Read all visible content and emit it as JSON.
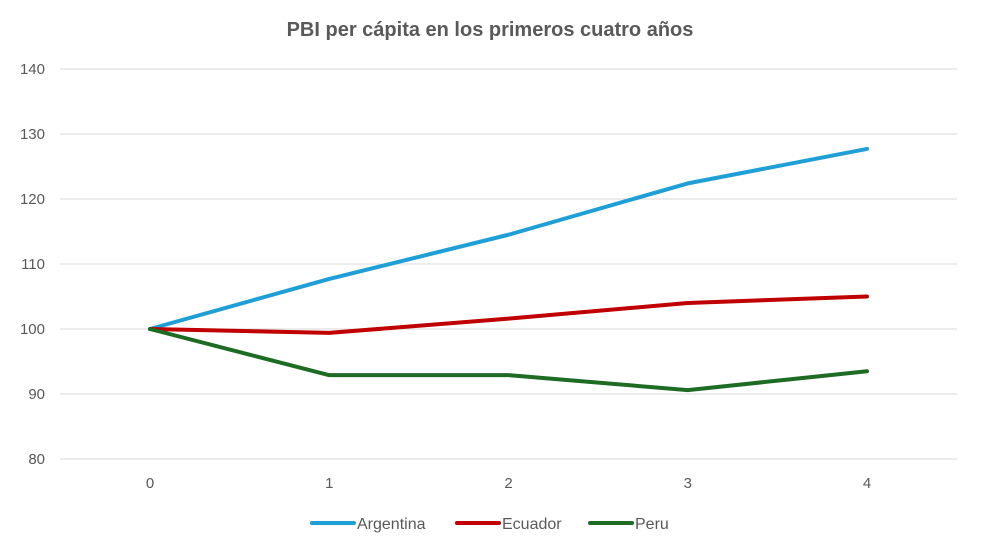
{
  "chart_data": {
    "type": "line",
    "title": "PBI per cápita en los primeros cuatro años",
    "xlabel": "",
    "ylabel": "",
    "x": [
      0,
      1,
      2,
      3,
      4
    ],
    "x_tick_labels": [
      "0",
      "1",
      "2",
      "3",
      "4"
    ],
    "ylim": [
      80,
      140
    ],
    "y_ticks": [
      80,
      90,
      100,
      110,
      120,
      130,
      140
    ],
    "y_tick_labels": [
      "80",
      "90",
      "100",
      "110",
      "120",
      "130",
      "140"
    ],
    "grid": true,
    "legend_position": "bottom",
    "series": [
      {
        "name": "Argentina",
        "color": "#1f9fd6",
        "values": [
          100,
          107.7,
          114.5,
          122.4,
          127.7
        ]
      },
      {
        "name": "Ecuador",
        "color": "#c00000",
        "values": [
          100,
          99.4,
          101.6,
          104.0,
          105.0
        ]
      },
      {
        "name": "Peru",
        "color": "#1e6b24",
        "values": [
          100,
          92.9,
          92.9,
          90.6,
          93.5
        ]
      }
    ]
  }
}
